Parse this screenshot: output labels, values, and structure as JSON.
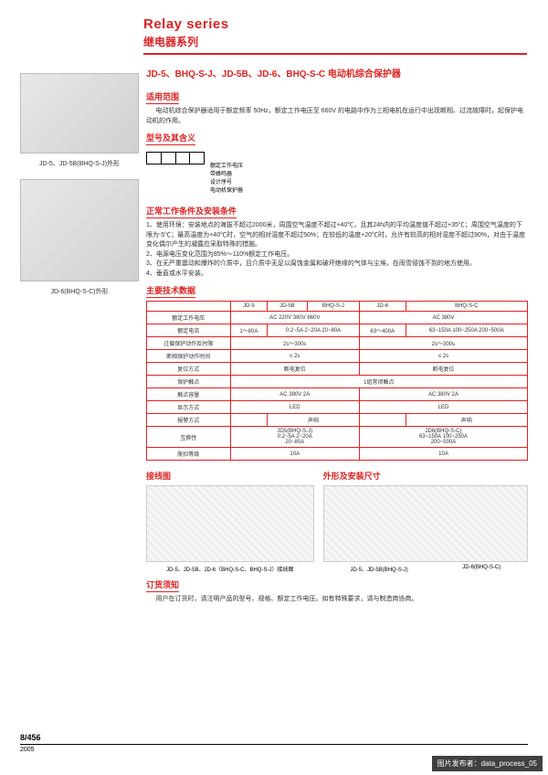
{
  "header": {
    "en": "Relay series",
    "zh": "继电器系列"
  },
  "productTitle": "JD-5、BHQ-S-J、JD-5B、JD-6、BHQ-S-C 电动机综合保护器",
  "leftImages": {
    "cap1": "JD-5、JD-5B(BHQ-S-J)外形",
    "cap2": "JD-6(BHQ-S-C)外形"
  },
  "scope": {
    "h": "适用范围",
    "t": "电动机综合保护器适用于额定频率 50Hz，额定工作电压至 660V 的电路中作为三相电机在运行中出现断相、过流故障时，起保护电动机的作用。"
  },
  "model": {
    "h": "型号及其含义",
    "legend": [
      "额定工作电压",
      "带蜂鸣器",
      "设计序号",
      "电动机保护器"
    ]
  },
  "conditions": {
    "h": "正常工作条件及安装条件",
    "items": [
      "1、使用环境：安装地点的海拔不超过2000米，周围空气温度不超过+40℃，且其24h内的平均温度值不超过+35℃；周围空气温度的下限为-5℃；最高温度为+40℃时，空气的相对湿度不超过50%；在较低的温度+20℃时，允许有较高的相对湿度不超过90%，对由于温度变化偶尔产生的凝露应采取特殊的措施。",
      "2、电源电压变化范围为85%～110%额定工作电压。",
      "3、在无严重震动和爆炸的介质中，且介质中无足以腐蚀金属和破坏绝缘的气体与尘埃，在雨雪侵蚀不到的地方使用。",
      "4、垂直或水平安装。"
    ]
  },
  "specHeader": "主要技术数据",
  "table": {
    "cols": [
      "",
      "JD-5",
      "JD-5B",
      "BHQ-S-J",
      "JD-6",
      "BHQ-S-C"
    ],
    "rows": [
      {
        "l": "额定工作电压",
        "c": [
          {
            "t": "AC 220V 380V 660V",
            "s": 3
          },
          {
            "t": "AC 380V",
            "s": 2
          }
        ]
      },
      {
        "l": "额定电流",
        "c": [
          {
            "t": "1～80A",
            "s": 1
          },
          {
            "t": "0.2~5A 2~20A 20~80A",
            "s": 2
          },
          {
            "t": "63～400A",
            "s": 1
          },
          {
            "t": "63~150A 100~250A 200~500A",
            "s": 1
          }
        ]
      },
      {
        "l": "过载保护动作反时限",
        "c": [
          {
            "t": "2s～300s",
            "s": 3
          },
          {
            "t": "2s～300s",
            "s": 2
          }
        ]
      },
      {
        "l": "断相保护动作时间",
        "c": [
          {
            "t": "≤ 2s",
            "s": 3
          },
          {
            "t": "≤ 2s",
            "s": 2
          }
        ]
      },
      {
        "l": "复位方式",
        "c": [
          {
            "t": "断电复位",
            "s": 3
          },
          {
            "t": "断电复位",
            "s": 2
          }
        ]
      },
      {
        "l": "保护触点",
        "c": [
          {
            "t": "1组常闭触点",
            "s": 5
          }
        ]
      },
      {
        "l": "触点容量",
        "c": [
          {
            "t": "AC 380V 2A",
            "s": 3
          },
          {
            "t": "AC 380V 2A",
            "s": 2
          }
        ]
      },
      {
        "l": "显示方式",
        "c": [
          {
            "t": "LED",
            "s": 3
          },
          {
            "t": "LED",
            "s": 2
          }
        ]
      },
      {
        "l": "报警方式",
        "c": [
          {
            "t": "",
            "s": 1
          },
          {
            "t": "声响",
            "s": 2
          },
          {
            "t": "",
            "s": 1
          },
          {
            "t": "声响",
            "s": 1
          }
        ]
      },
      {
        "l": "互换性",
        "c": [
          {
            "t": "JD5(BHQ-S-J)\n0.2~5A 2~20A\n20~80A",
            "s": 3
          },
          {
            "t": "JD6(BHQ-S-C)\n63~150A 100~250A\n200~500A",
            "s": 2
          }
        ]
      },
      {
        "l": "脱扣等级",
        "c": [
          {
            "t": "10A",
            "s": 3
          },
          {
            "t": "10A",
            "s": 2
          }
        ]
      }
    ]
  },
  "wiring": {
    "h": "接线图",
    "cap": "JD-5、JD-5B、JD-6（BHQ-S-C、BHQ-S-J）接线图"
  },
  "dims": {
    "h": "外形及安装尺寸",
    "cap1": "JD-5、JD-5B(BHQ-S-J)",
    "cap2": "JD-6(BHQ-S-C)"
  },
  "order": {
    "h": "订货须知",
    "t": "用户在订货时，请注明产品的型号、规格、额定工作电压。如有特殊要求，请与制造商协商。"
  },
  "footer": {
    "page": "8/456",
    "year": "2005"
  },
  "watermark": "图片发布者：data_process_05"
}
